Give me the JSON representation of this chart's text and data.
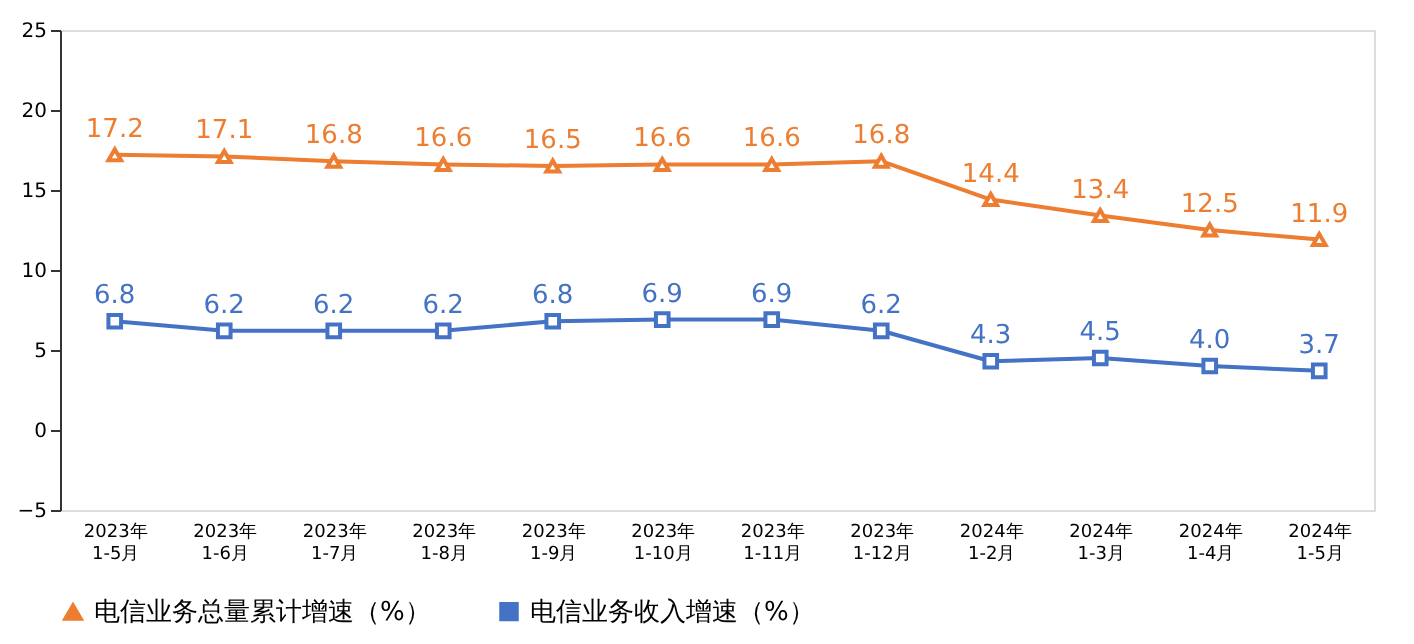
{
  "chart_data": {
    "type": "line",
    "categories": [
      "2023年\n1-5月",
      "2023年\n1-6月",
      "2023年\n1-7月",
      "2023年\n1-8月",
      "2023年\n1-9月",
      "2023年\n1-10月",
      "2023年\n1-11月",
      "2023年\n1-12月",
      "2024年\n1-2月",
      "2024年\n1-3月",
      "2024年\n1-4月",
      "2024年\n1-5月"
    ],
    "series": [
      {
        "name": "电信业务总量累计增速（%）",
        "color": "#ed7d31",
        "marker": "triangle",
        "values": [
          17.2,
          17.1,
          16.8,
          16.6,
          16.5,
          16.6,
          16.6,
          16.8,
          14.4,
          13.4,
          12.5,
          11.9
        ],
        "value_labels": [
          "17.2",
          "17.1",
          "16.8",
          "16.6",
          "16.5",
          "16.6",
          "16.6",
          "16.8",
          "14.4",
          "13.4",
          "12.5",
          "11.9"
        ]
      },
      {
        "name": "电信业务收入增速（%）",
        "color": "#4472c4",
        "marker": "square",
        "values": [
          6.8,
          6.2,
          6.2,
          6.2,
          6.8,
          6.9,
          6.9,
          6.2,
          4.3,
          4.5,
          4.0,
          3.7
        ],
        "value_labels": [
          "6.8",
          "6.2",
          "6.2",
          "6.2",
          "6.8",
          "6.9",
          "6.9",
          "6.2",
          "4.3",
          "4.5",
          "4.0",
          "3.7"
        ]
      }
    ],
    "ylim": [
      -5,
      25
    ],
    "yticks": [
      -5,
      0,
      5,
      10,
      15,
      20,
      25
    ],
    "grid": false,
    "legend": "bottom",
    "line_style": "solid"
  }
}
